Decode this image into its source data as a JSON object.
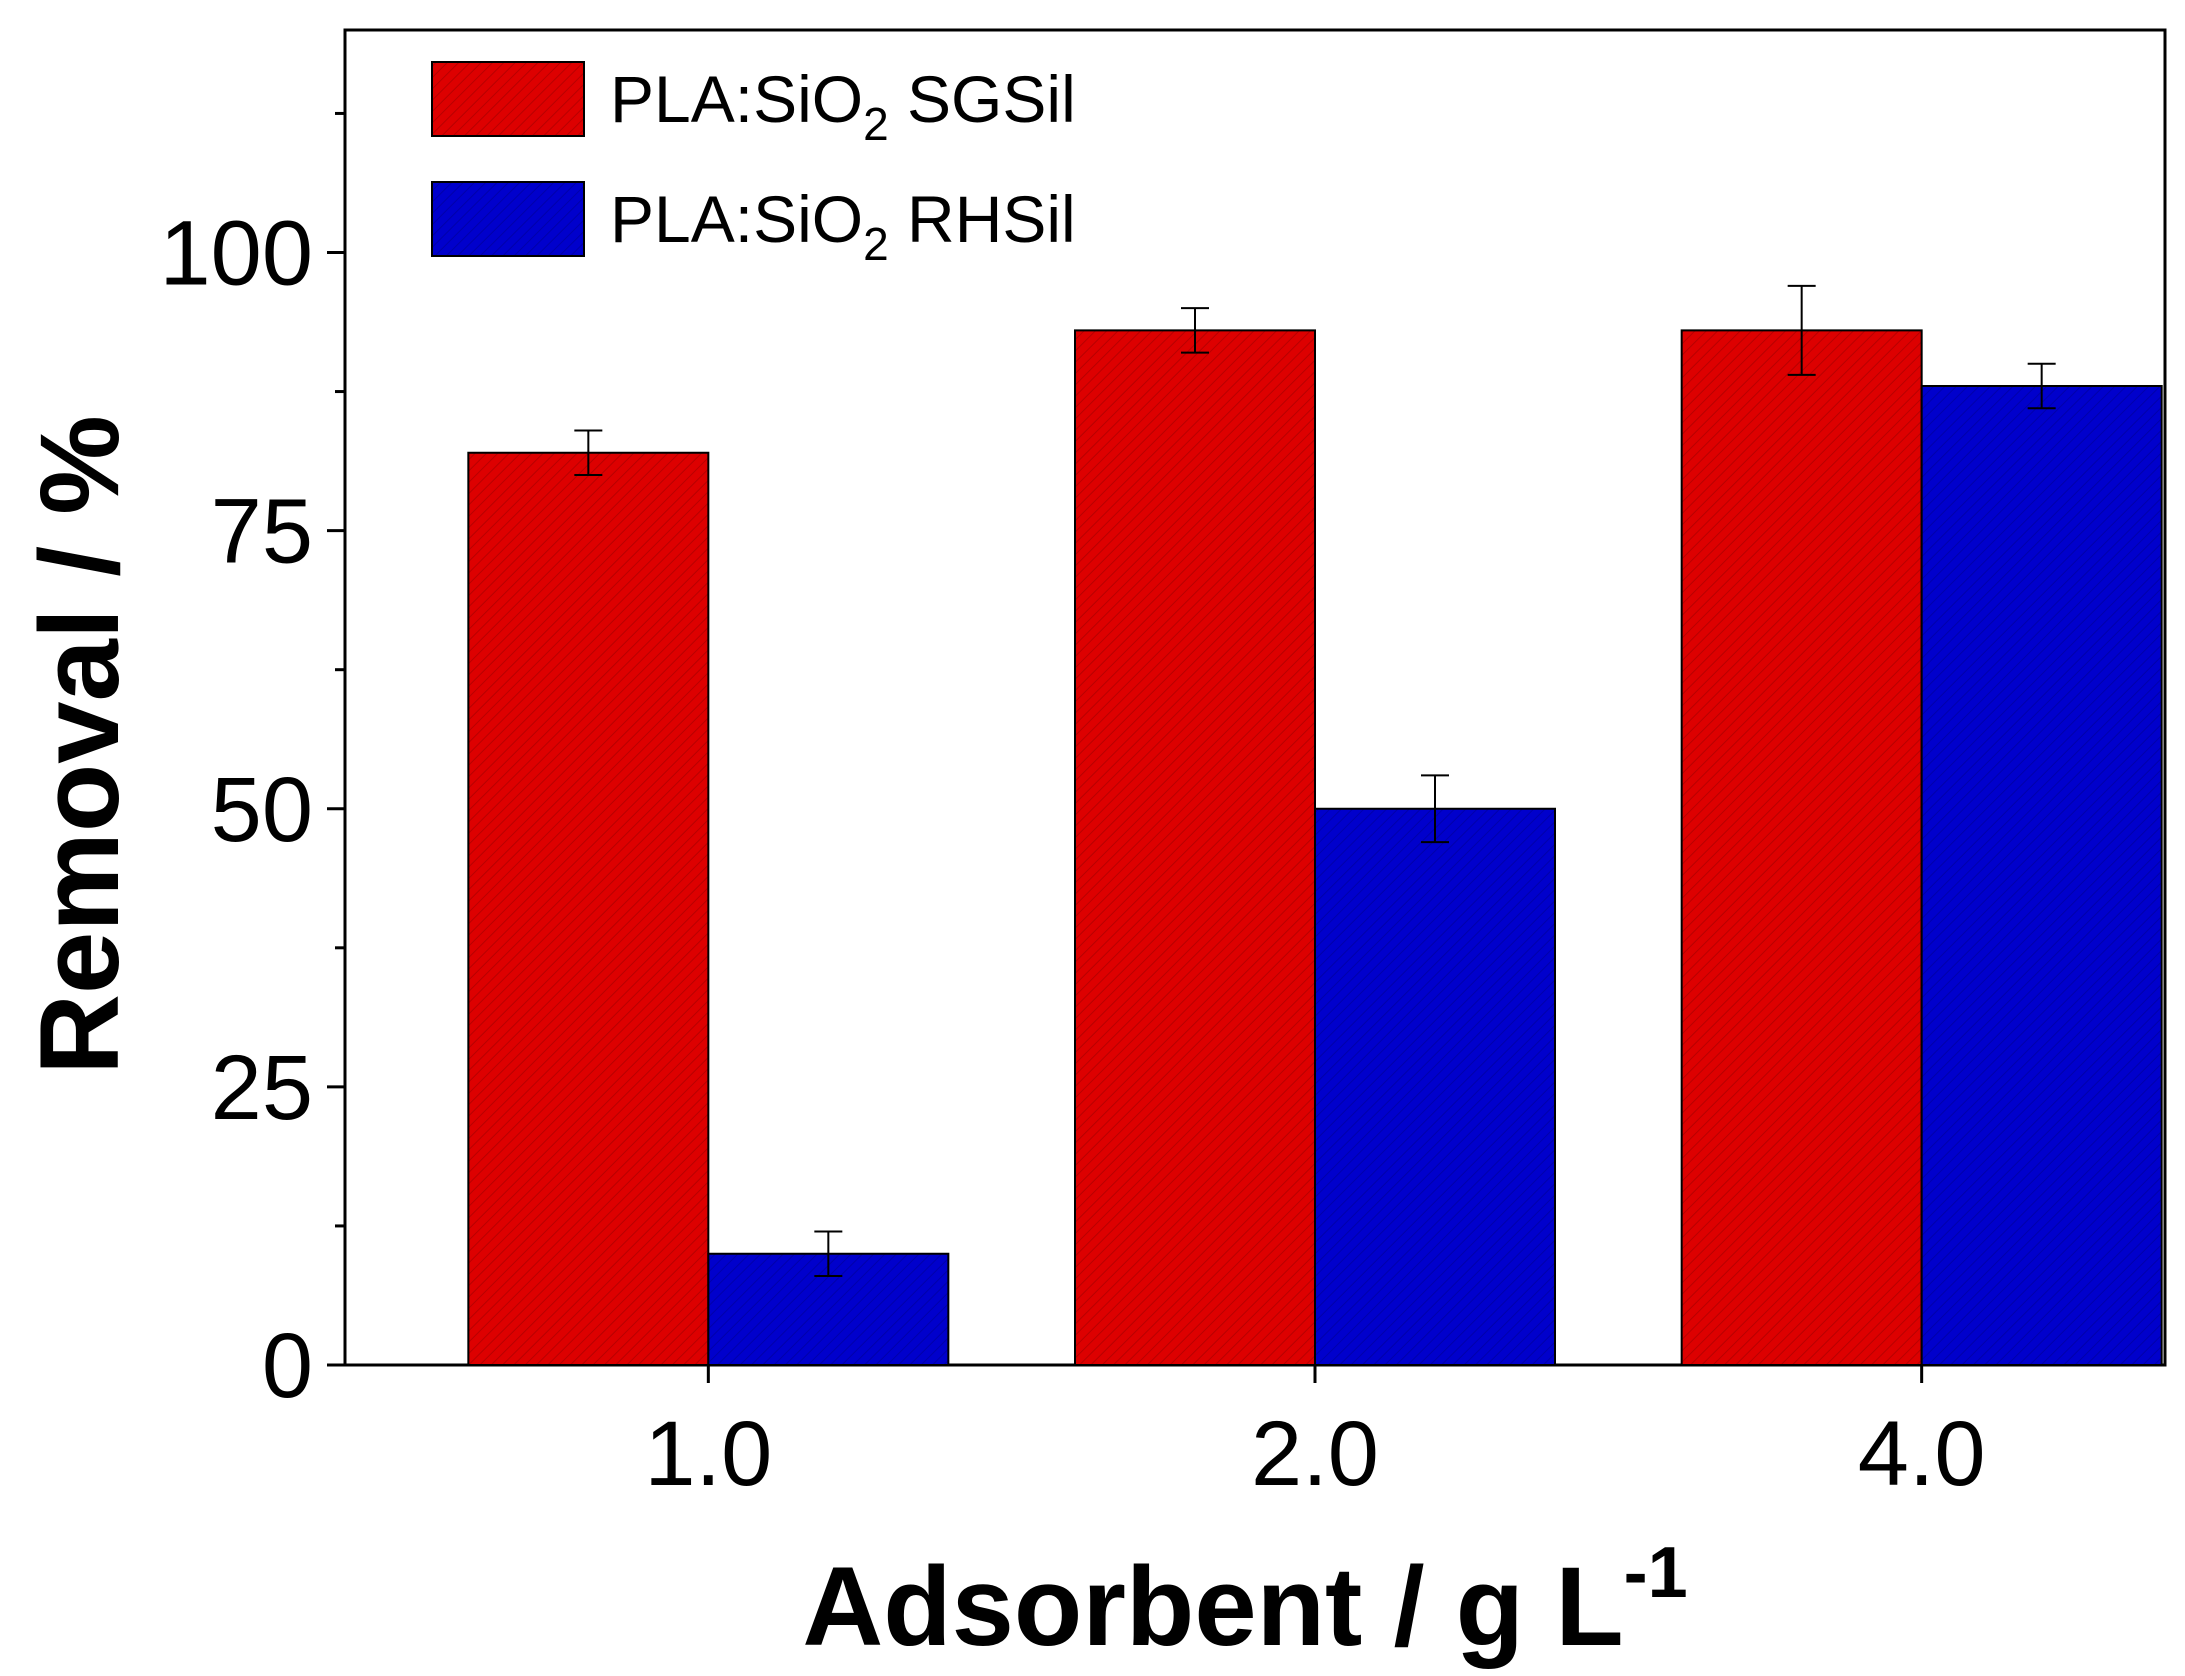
{
  "chart_data": {
    "type": "bar",
    "title": "",
    "xlabel": "Adsorbent / g L",
    "xlabel_superscript": "-1",
    "ylabel": "Removal / %",
    "ylim": [
      0,
      120
    ],
    "yticks": [
      0,
      25,
      50,
      75,
      100
    ],
    "yticks_minor": [
      12.5,
      37.5,
      62.5,
      87.5,
      112.5
    ],
    "categories": [
      "1.0",
      "2.0",
      "4.0"
    ],
    "series": [
      {
        "name": "PLA:SiO2 SGSil",
        "label_main": "PLA:SiO",
        "label_sub": "2",
        "label_tail": " SGSil",
        "color": "#dd0000",
        "edge": "#000000",
        "values": [
          82,
          93,
          93
        ],
        "errors": [
          2,
          2,
          4
        ]
      },
      {
        "name": "PLA:SiO2 RHSil",
        "label_main": "PLA:SiO",
        "label_sub": "2",
        "label_tail": " RHSil",
        "color": "#0000cc",
        "edge": "#000000",
        "values": [
          10,
          50,
          88
        ],
        "errors": [
          2,
          3,
          2
        ]
      }
    ],
    "legend": "top-left",
    "grid": false
  }
}
